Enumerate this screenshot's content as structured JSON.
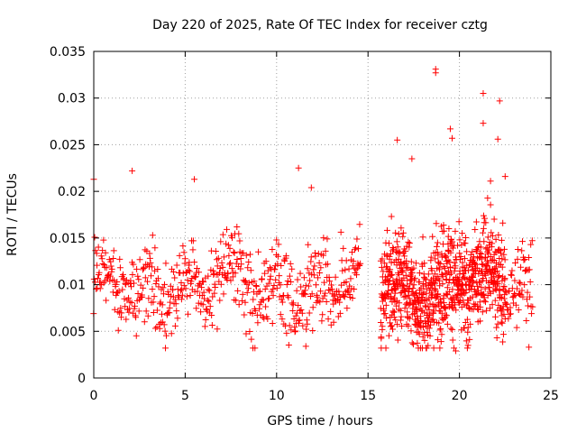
{
  "chart_data": {
    "type": "scatter",
    "title": "Day 220 of 2025, Rate Of TEC Index for receiver cztg",
    "xlabel": "GPS time / hours",
    "ylabel": "ROTI / TECUs",
    "xlim": [
      0,
      25
    ],
    "ylim": [
      0,
      0.035
    ],
    "x_ticks": [
      0,
      5,
      10,
      15,
      20,
      25
    ],
    "x_tick_labels": [
      "0",
      "5",
      "10",
      "15",
      "20",
      "25"
    ],
    "y_ticks": [
      0,
      0.005,
      0.01,
      0.015,
      0.02,
      0.025,
      0.03,
      0.035
    ],
    "y_tick_labels": [
      "0",
      "0.005",
      "0.01",
      "0.015",
      "0.02",
      "0.025",
      "0.03",
      "0.035"
    ],
    "grid": true,
    "marker": "plus",
    "color": "#ff0000",
    "data_gap_hours": [
      14.6,
      15.7
    ],
    "typical_range": [
      0.005,
      0.015
    ],
    "outliers": [
      {
        "x": 0.0,
        "y": 0.0213
      },
      {
        "x": 2.1,
        "y": 0.0222
      },
      {
        "x": 5.5,
        "y": 0.0213
      },
      {
        "x": 11.2,
        "y": 0.0225
      },
      {
        "x": 11.9,
        "y": 0.0204
      },
      {
        "x": 16.6,
        "y": 0.0255
      },
      {
        "x": 17.4,
        "y": 0.0235
      },
      {
        "x": 18.7,
        "y": 0.0331
      },
      {
        "x": 18.7,
        "y": 0.0327
      },
      {
        "x": 19.5,
        "y": 0.0267
      },
      {
        "x": 19.6,
        "y": 0.0257
      },
      {
        "x": 21.3,
        "y": 0.0305
      },
      {
        "x": 21.3,
        "y": 0.0273
      },
      {
        "x": 21.7,
        "y": 0.0211
      },
      {
        "x": 22.2,
        "y": 0.0297
      },
      {
        "x": 22.1,
        "y": 0.0256
      },
      {
        "x": 22.5,
        "y": 0.0216
      },
      {
        "x": 19.0,
        "y": 0.0039
      },
      {
        "x": 19.8,
        "y": 0.0029
      },
      {
        "x": 23.8,
        "y": 0.0033
      },
      {
        "x": 11.6,
        "y": 0.0034
      }
    ]
  }
}
